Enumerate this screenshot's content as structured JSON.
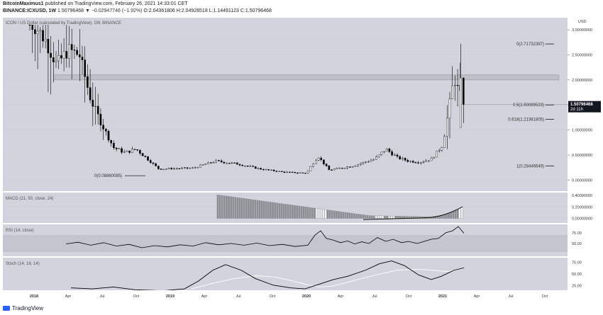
{
  "header": {
    "author": "BitcoinMaximus1",
    "published": "published on TradingView.com, February 26, 2021 14:33:01 CET",
    "symbol": "BINANCE:ICXUSD, 1W",
    "price": "1.50796468",
    "change": "▼ −0.02947746 (−1.92%)",
    "ohlc": "O:2.04361806 H:2.04928518 L:1.14491123 C:1.50796468"
  },
  "colors": {
    "pane_bg": "#d1d4dc",
    "up": "#ffffff",
    "down": "#000000",
    "price_tag": "#131722",
    "zone": "#b8bbc2"
  },
  "chart_data": [
    {
      "type": "candlestick",
      "title": "ICON / US Dollar (calculated by TradingView), 1W, BINANCE",
      "currency": "USD",
      "x_ticks": [
        "2018",
        "Apr",
        "Jul",
        "Oct",
        "2019",
        "Apr",
        "Jul",
        "Oct",
        "2020",
        "Apr",
        "Jul",
        "Oct",
        "2021",
        "Apr",
        "Jul",
        "Oct"
      ],
      "y_ticks": [
        "0.00000000",
        "0.50000000",
        "1.00000000",
        "1.50000000",
        "2.00000000",
        "2.50000000",
        "3.00000000"
      ],
      "ylim": [
        -0.05,
        3.1
      ],
      "series_approx_close": [
        {
          "x": "2018-01",
          "y": 3.1
        },
        {
          "x": "2018-02",
          "y": 2.8
        },
        {
          "x": "2018-03",
          "y": 2.3
        },
        {
          "x": "2018-04",
          "y": 2.6
        },
        {
          "x": "2018-05",
          "y": 2.5
        },
        {
          "x": "2018-06",
          "y": 1.6
        },
        {
          "x": "2018-07",
          "y": 1.1
        },
        {
          "x": "2018-08",
          "y": 0.65
        },
        {
          "x": "2018-09",
          "y": 0.55
        },
        {
          "x": "2018-10",
          "y": 0.62
        },
        {
          "x": "2018-11",
          "y": 0.42
        },
        {
          "x": "2018-12",
          "y": 0.22
        },
        {
          "x": "2019-01",
          "y": 0.23
        },
        {
          "x": "2019-03",
          "y": 0.24
        },
        {
          "x": "2019-05",
          "y": 0.38
        },
        {
          "x": "2019-07",
          "y": 0.32
        },
        {
          "x": "2019-09",
          "y": 0.22
        },
        {
          "x": "2019-11",
          "y": 0.16
        },
        {
          "x": "2020-01",
          "y": 0.14
        },
        {
          "x": "2020-02",
          "y": 0.48
        },
        {
          "x": "2020-03",
          "y": 0.2
        },
        {
          "x": "2020-05",
          "y": 0.28
        },
        {
          "x": "2020-07",
          "y": 0.42
        },
        {
          "x": "2020-08",
          "y": 0.62
        },
        {
          "x": "2020-09",
          "y": 0.45
        },
        {
          "x": "2020-10",
          "y": 0.38
        },
        {
          "x": "2020-11",
          "y": 0.36
        },
        {
          "x": "2020-12",
          "y": 0.42
        },
        {
          "x": "2021-01",
          "y": 0.7
        },
        {
          "x": "2021-02",
          "y": 2.04
        },
        {
          "x": "2021-02-26",
          "y": 1.50796468
        }
      ],
      "fib_levels": [
        {
          "label": "0(2.71732397)",
          "value": 2.71732397
        },
        {
          "label": "0.5(1.50089523)",
          "value": 1.50089523
        },
        {
          "label": "0.618(1.21381805)",
          "value": 1.21381805
        },
        {
          "label": "1(0.28446649)",
          "value": 0.28446649
        },
        {
          "label": "0(0.08860085)",
          "value": 0.08860085
        }
      ],
      "resistance_zone": [
        2.0,
        2.1
      ],
      "last_price_label": "1.50796468",
      "countdown": "2d 11h"
    },
    {
      "type": "bar",
      "title": "MACD (21, 50, close, 24)",
      "y_ticks": [
        "0.00000000",
        "0.20000000",
        "0.40000000"
      ],
      "ylim": [
        -0.03,
        0.45
      ]
    },
    {
      "type": "line",
      "title": "RSI (14, close)",
      "y_ticks": [
        "50.00",
        "75.00"
      ],
      "ylim": [
        20,
        95
      ]
    },
    {
      "type": "line",
      "title": "Stoch (14, 18, 14)",
      "y_ticks": [
        "25.00",
        "50.00",
        "75.00"
      ],
      "ylim": [
        15,
        85
      ]
    }
  ],
  "footer": {
    "brand": "TradingView"
  }
}
